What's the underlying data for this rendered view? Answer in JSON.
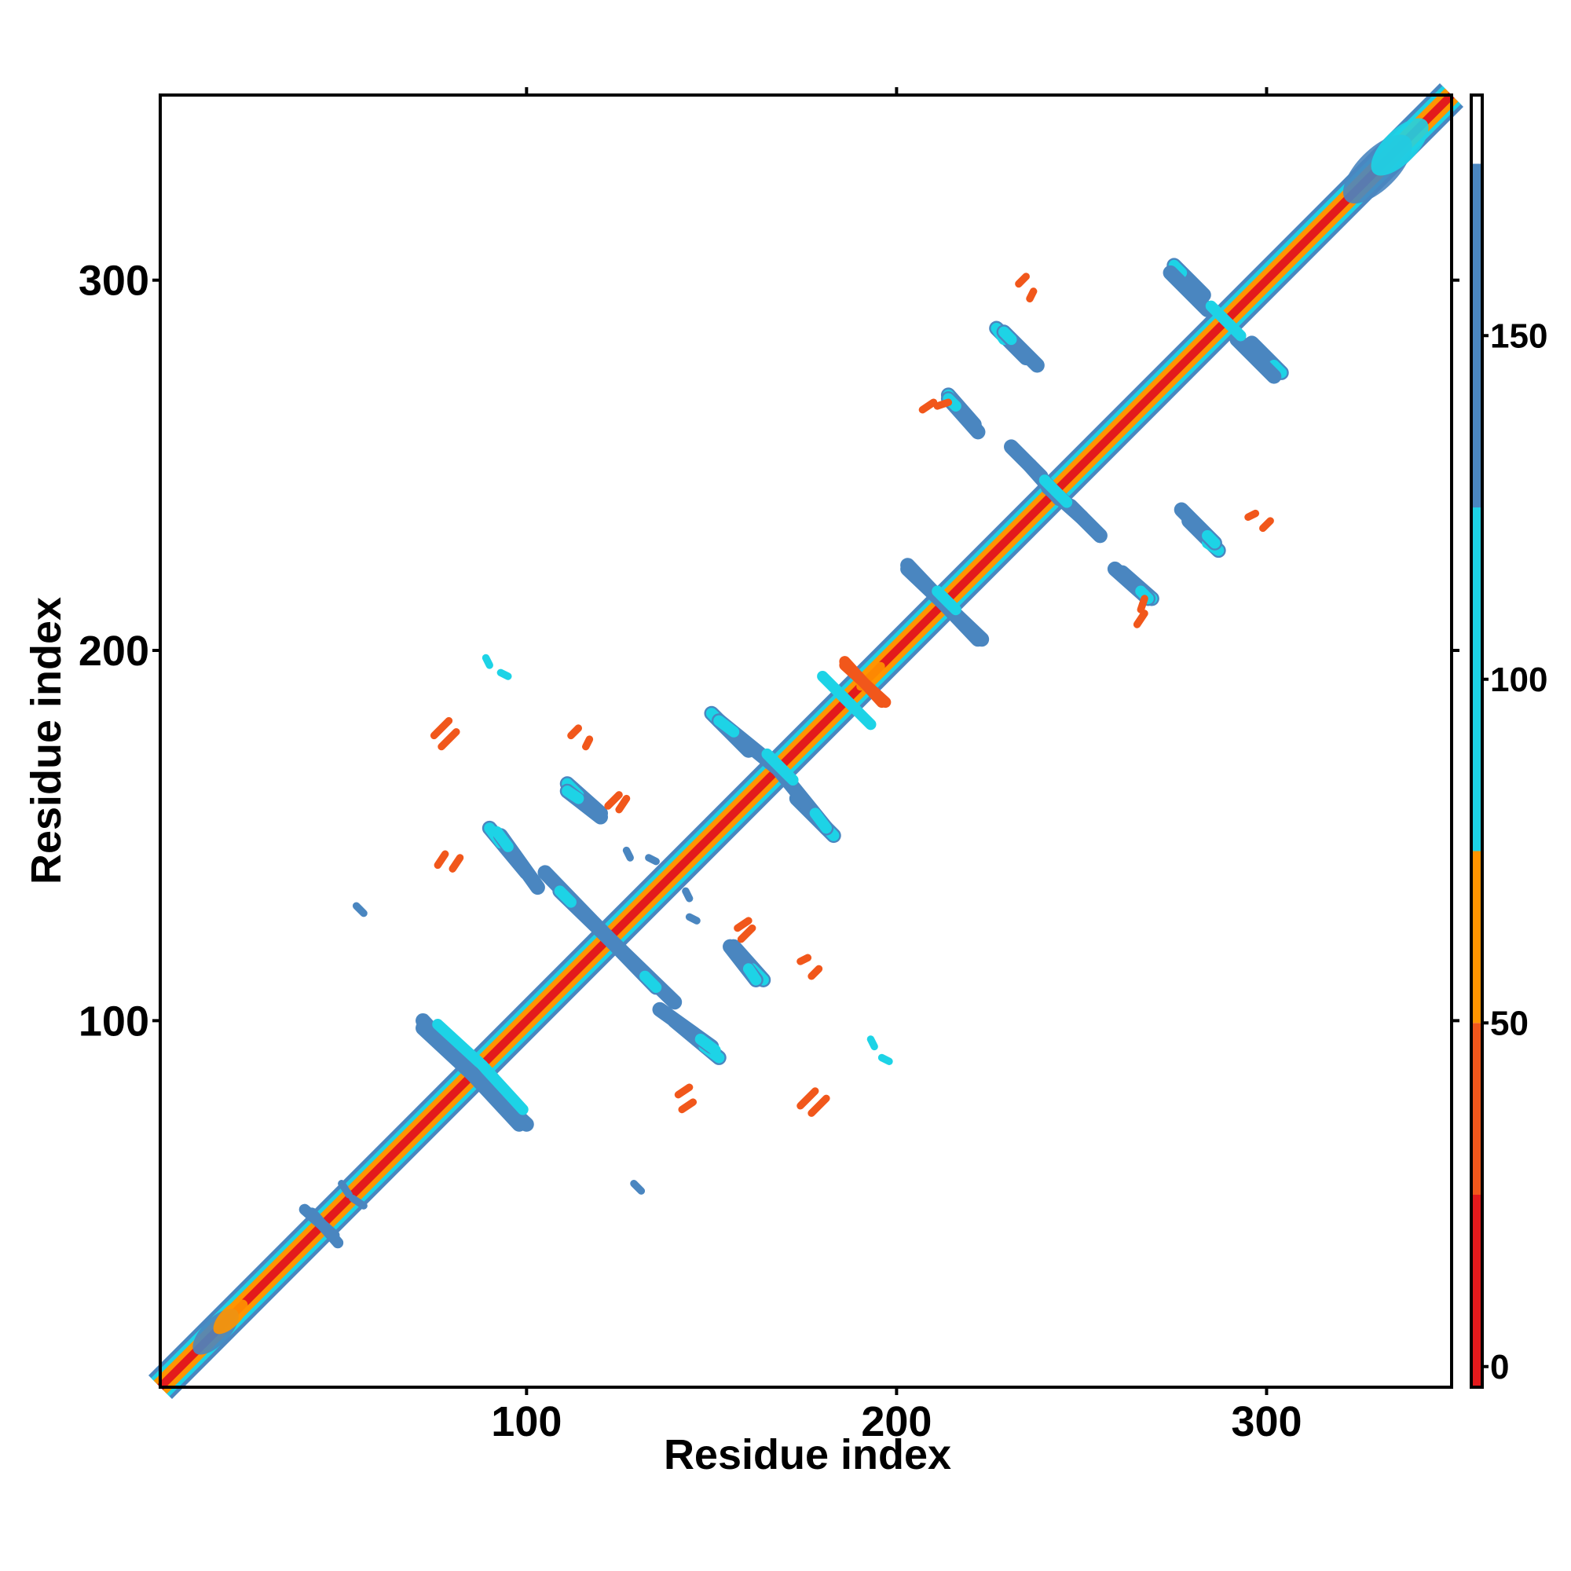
{
  "chart_data": {
    "type": "heatmap",
    "description_kind": "contact-map",
    "xlabel": "Residue index",
    "ylabel": "Residue index",
    "xlim": [
      1,
      350
    ],
    "ylim": [
      1,
      350
    ],
    "x_ticks": [
      100,
      200,
      300
    ],
    "y_ticks": [
      100,
      200,
      300
    ],
    "x_tick_labels": [
      "100",
      "200",
      "300"
    ],
    "y_tick_labels": [
      "100",
      "200",
      "300"
    ],
    "grid": false,
    "colorbar": {
      "position": "right",
      "range": [
        -3,
        185
      ],
      "ticks": [
        0,
        50,
        100,
        150
      ],
      "tick_labels": [
        "0",
        "50",
        "100",
        "150"
      ],
      "bands": [
        {
          "from": -3,
          "to": 25,
          "color": "#e31a1c"
        },
        {
          "from": 25,
          "to": 50,
          "color": "#f1571b"
        },
        {
          "from": 50,
          "to": 75,
          "color": "#ff9500"
        },
        {
          "from": 75,
          "to": 125,
          "color": "#1dd3e6"
        },
        {
          "from": 125,
          "to": 175,
          "color": "#4a86c0"
        },
        {
          "from": 175,
          "to": 185,
          "color": "#ffffff"
        }
      ]
    },
    "colors": {
      "red": "#e31a1c",
      "orange_red": "#f1571b",
      "orange": "#ff9500",
      "cyan": "#1dd3e6",
      "steel_blue": "#4a86c0",
      "light_blue": "#2bb3dc"
    },
    "diagonal": {
      "from": 1,
      "to": 350
    },
    "segments": [
      {
        "x1": 72,
        "y1": 100,
        "x2": 98,
        "y2": 72,
        "color": "steel_blue",
        "w": 4
      },
      {
        "x1": 76,
        "y1": 99,
        "x2": 88,
        "y2": 88,
        "color": "cyan",
        "w": 3
      },
      {
        "x1": 90,
        "y1": 152,
        "x2": 100,
        "y2": 140,
        "color": "steel_blue",
        "w": 4
      },
      {
        "x1": 90,
        "y1": 152,
        "x2": 93,
        "y2": 148,
        "color": "cyan",
        "w": 3
      },
      {
        "x1": 109,
        "y1": 135,
        "x2": 140,
        "y2": 105,
        "color": "steel_blue",
        "w": 4
      },
      {
        "x1": 109,
        "y1": 135,
        "x2": 112,
        "y2": 132,
        "color": "cyan",
        "w": 3
      },
      {
        "x1": 111,
        "y1": 164,
        "x2": 120,
        "y2": 156,
        "color": "steel_blue",
        "w": 4
      },
      {
        "x1": 111,
        "y1": 164,
        "x2": 114,
        "y2": 161,
        "color": "cyan",
        "w": 3
      },
      {
        "x1": 136,
        "y1": 103,
        "x2": 150,
        "y2": 93,
        "color": "steel_blue",
        "w": 4
      },
      {
        "x1": 147,
        "y1": 95,
        "x2": 151,
        "y2": 92,
        "color": "cyan",
        "w": 3
      },
      {
        "x1": 155,
        "y1": 120,
        "x2": 162,
        "y2": 111,
        "color": "steel_blue",
        "w": 4
      },
      {
        "x1": 160,
        "y1": 114,
        "x2": 162,
        "y2": 111,
        "color": "cyan",
        "w": 3
      },
      {
        "x1": 150,
        "y1": 183,
        "x2": 160,
        "y2": 173,
        "color": "steel_blue",
        "w": 4
      },
      {
        "x1": 150,
        "y1": 183,
        "x2": 153,
        "y2": 180,
        "color": "cyan",
        "w": 3
      },
      {
        "x1": 168,
        "y1": 168,
        "x2": 181,
        "y2": 152,
        "color": "steel_blue",
        "w": 4
      },
      {
        "x1": 166,
        "y1": 171,
        "x2": 172,
        "y2": 165,
        "color": "cyan",
        "w": 3
      },
      {
        "x1": 178,
        "y1": 156,
        "x2": 181,
        "y2": 152,
        "color": "cyan",
        "w": 3
      },
      {
        "x1": 203,
        "y1": 223,
        "x2": 222,
        "y2": 203,
        "color": "steel_blue",
        "w": 4
      },
      {
        "x1": 211,
        "y1": 216,
        "x2": 215,
        "y2": 212,
        "color": "cyan",
        "w": 3
      },
      {
        "x1": 214,
        "y1": 269,
        "x2": 221,
        "y2": 261,
        "color": "steel_blue",
        "w": 4
      },
      {
        "x1": 214,
        "y1": 269,
        "x2": 216,
        "y2": 266,
        "color": "cyan",
        "w": 3
      },
      {
        "x1": 227,
        "y1": 287,
        "x2": 235,
        "y2": 279,
        "color": "steel_blue",
        "w": 4
      },
      {
        "x1": 227,
        "y1": 287,
        "x2": 229,
        "y2": 284,
        "color": "cyan",
        "w": 3
      },
      {
        "x1": 231,
        "y1": 255,
        "x2": 239,
        "y2": 247,
        "color": "steel_blue",
        "w": 4
      },
      {
        "x1": 241,
        "y1": 244,
        "x2": 250,
        "y2": 236,
        "color": "steel_blue",
        "w": 4
      },
      {
        "x1": 240,
        "y1": 246,
        "x2": 243,
        "y2": 243,
        "color": "cyan",
        "w": 3
      },
      {
        "x1": 259,
        "y1": 222,
        "x2": 268,
        "y2": 214,
        "color": "steel_blue",
        "w": 4
      },
      {
        "x1": 266,
        "y1": 216,
        "x2": 268,
        "y2": 214,
        "color": "cyan",
        "w": 3
      },
      {
        "x1": 277,
        "y1": 238,
        "x2": 286,
        "y2": 229,
        "color": "steel_blue",
        "w": 4
      },
      {
        "x1": 284,
        "y1": 231,
        "x2": 286,
        "y2": 229,
        "color": "cyan",
        "w": 3
      },
      {
        "x1": 275,
        "y1": 304,
        "x2": 283,
        "y2": 296,
        "color": "steel_blue",
        "w": 4
      },
      {
        "x1": 275,
        "y1": 304,
        "x2": 277,
        "y2": 302,
        "color": "cyan",
        "w": 3
      },
      {
        "x1": 292,
        "y1": 284,
        "x2": 302,
        "y2": 274,
        "color": "steel_blue",
        "w": 4
      },
      {
        "x1": 288,
        "y1": 290,
        "x2": 293,
        "y2": 285,
        "color": "cyan",
        "w": 3
      },
      {
        "x1": 40,
        "y1": 49,
        "x2": 48,
        "y2": 42,
        "color": "steel_blue",
        "w": 3
      },
      {
        "x1": 186,
        "y1": 196,
        "x2": 197,
        "y2": 186,
        "color": "orange_red",
        "w": 3
      },
      {
        "x1": 184,
        "y1": 189,
        "x2": 193,
        "y2": 180,
        "color": "cyan",
        "w": 3
      },
      {
        "x1": 75,
        "y1": 177,
        "x2": 79,
        "y2": 181,
        "color": "orange_red",
        "w": 2
      },
      {
        "x1": 76,
        "y1": 142,
        "x2": 78,
        "y2": 145,
        "color": "orange_red",
        "w": 2
      },
      {
        "x1": 112,
        "y1": 177,
        "x2": 114,
        "y2": 179,
        "color": "orange_red",
        "w": 2
      },
      {
        "x1": 122,
        "y1": 158,
        "x2": 125,
        "y2": 161,
        "color": "orange_red",
        "w": 2
      },
      {
        "x1": 141,
        "y1": 80,
        "x2": 144,
        "y2": 82,
        "color": "orange_red",
        "w": 2
      },
      {
        "x1": 174,
        "y1": 77,
        "x2": 178,
        "y2": 81,
        "color": "orange_red",
        "w": 2
      },
      {
        "x1": 157,
        "y1": 125,
        "x2": 160,
        "y2": 127,
        "color": "orange_red",
        "w": 2
      },
      {
        "x1": 174,
        "y1": 116,
        "x2": 176,
        "y2": 117,
        "color": "orange_red",
        "w": 2
      },
      {
        "x1": 211,
        "y1": 266,
        "x2": 214,
        "y2": 267,
        "color": "orange_red",
        "w": 2
      },
      {
        "x1": 233,
        "y1": 299,
        "x2": 235,
        "y2": 301,
        "color": "orange_red",
        "w": 2
      },
      {
        "x1": 265,
        "y1": 207,
        "x2": 267,
        "y2": 210,
        "color": "orange_red",
        "w": 2
      },
      {
        "x1": 295,
        "y1": 236,
        "x2": 297,
        "y2": 237,
        "color": "orange_red",
        "w": 2
      },
      {
        "x1": 53,
        "y1": 52,
        "x2": 56,
        "y2": 50,
        "color": "steel_blue",
        "w": 2
      },
      {
        "x1": 129,
        "y1": 56,
        "x2": 131,
        "y2": 54,
        "color": "steel_blue",
        "w": 2
      },
      {
        "x1": 133,
        "y1": 144,
        "x2": 135,
        "y2": 143,
        "color": "steel_blue",
        "w": 2
      },
      {
        "x1": 144,
        "y1": 128,
        "x2": 146,
        "y2": 127,
        "color": "steel_blue",
        "w": 2
      },
      {
        "x1": 93,
        "y1": 194,
        "x2": 95,
        "y2": 193,
        "color": "cyan",
        "w": 2
      },
      {
        "x1": 196,
        "y1": 90,
        "x2": 198,
        "y2": 89,
        "color": "cyan",
        "w": 2
      }
    ],
    "blobs": [
      {
        "x": 16,
        "y": 16,
        "r": 8,
        "color": "steel_blue"
      },
      {
        "x": 20,
        "y": 20,
        "r": 6,
        "color": "orange"
      },
      {
        "x": 330,
        "y": 330,
        "r": 12,
        "color": "steel_blue"
      },
      {
        "x": 336,
        "y": 336,
        "r": 10,
        "color": "cyan"
      },
      {
        "x": 193,
        "y": 193,
        "r": 5,
        "color": "orange"
      }
    ]
  }
}
